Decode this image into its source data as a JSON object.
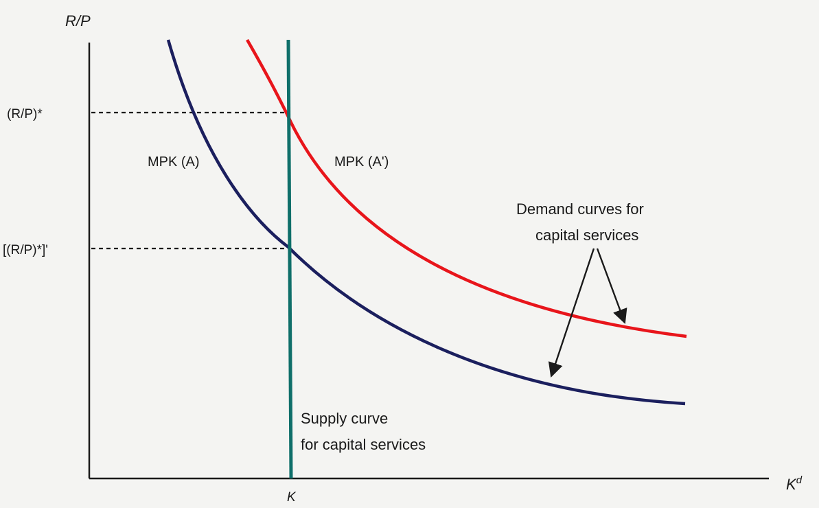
{
  "axes": {
    "y_label": "R/P",
    "x_label_base": "K",
    "x_label_sup": "d",
    "x_tick_label": "K",
    "y_tick_high": "(R/P)*",
    "y_tick_low": "[(R/P)*]'"
  },
  "curves": {
    "mpk_a_label": "MPK (A)",
    "mpk_a_prime_label": "MPK (A')",
    "demand_line1": "Demand curves for",
    "demand_line2": "capital services",
    "supply_line1": "Supply curve",
    "supply_line2": "for capital services"
  },
  "colors": {
    "mpk_a": "#1b1f5e",
    "mpk_a_prime": "#e8151b",
    "supply": "#0f6f6a",
    "axis": "#1a1a1a",
    "background": "#f4f4f2"
  }
}
